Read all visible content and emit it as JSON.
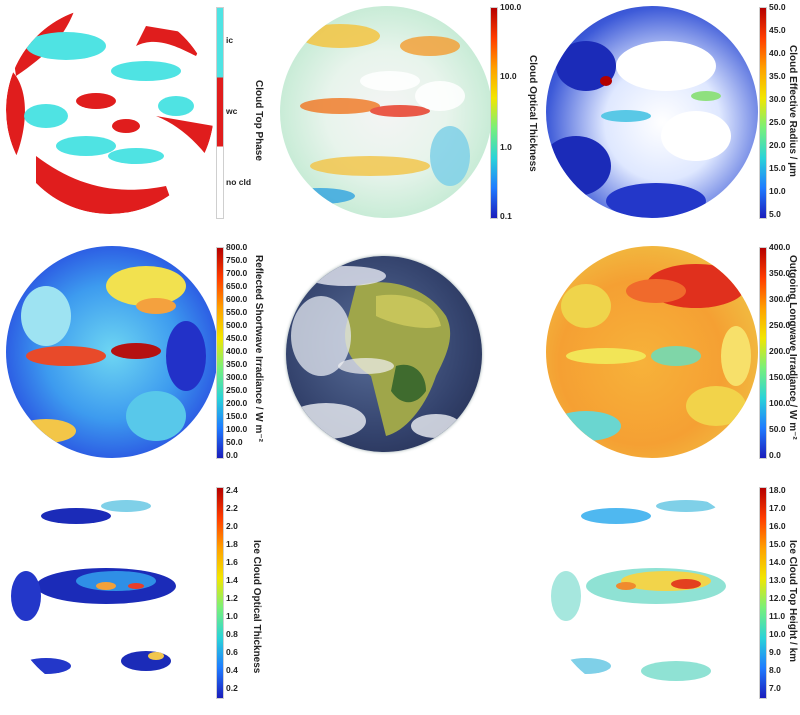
{
  "panels": [
    {
      "id": "cloud-top-phase",
      "title": "Cloud Top Phase",
      "ticks": [
        "ic",
        "wc",
        "no cld"
      ],
      "colors": {
        "ice": "#4fe3e3",
        "water": "#e01d1d",
        "none": "#ffffff"
      }
    },
    {
      "id": "cloud-optical-thickness",
      "title": "Cloud Optical Thickness",
      "ticks": [
        "100.0",
        "10.0",
        "1.0",
        "0.1"
      ]
    },
    {
      "id": "cloud-effective-radius",
      "title": "Cloud Effective Radius / µm",
      "ticks": [
        "50.0",
        "45.0",
        "40.0",
        "35.0",
        "30.0",
        "25.0",
        "20.0",
        "15.0",
        "10.0",
        "5.0"
      ]
    },
    {
      "id": "reflected-shortwave",
      "title": "Reflected Shortwave Irradiance / W m⁻²",
      "ticks": [
        "800.0",
        "750.0",
        "700.0",
        "650.0",
        "600.0",
        "550.0",
        "500.0",
        "450.0",
        "400.0",
        "350.0",
        "300.0",
        "250.0",
        "200.0",
        "150.0",
        "100.0",
        "50.0",
        "0.0"
      ]
    },
    {
      "id": "rgb-earth",
      "title": ""
    },
    {
      "id": "outgoing-longwave",
      "title": "Outgoing Longwave Irradiance / W m⁻²",
      "ticks": [
        "400.0",
        "350.0",
        "300.0",
        "250.0",
        "200.0",
        "150.0",
        "100.0",
        "50.0",
        "0.0"
      ]
    },
    {
      "id": "ice-cloud-optical-thickness",
      "title": "Ice Cloud Optical Thickness",
      "ticks": [
        "2.4",
        "2.2",
        "2.0",
        "1.8",
        "1.6",
        "1.4",
        "1.2",
        "1.0",
        "0.8",
        "0.6",
        "0.4",
        "0.2"
      ]
    },
    {
      "id": "ice-cloud-top-height",
      "title": "Ice Cloud Top Height / km",
      "ticks": [
        "18.0",
        "17.0",
        "16.0",
        "15.0",
        "14.0",
        "13.0",
        "12.0",
        "11.0",
        "10.0",
        "9.0",
        "8.0",
        "7.0"
      ]
    }
  ]
}
